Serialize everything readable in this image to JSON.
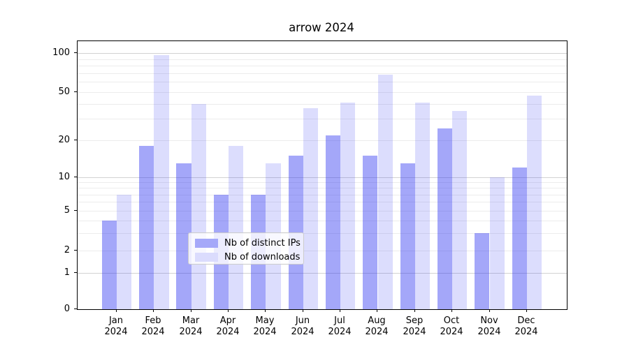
{
  "chart_data": {
    "type": "bar",
    "title": "arrow 2024",
    "xlabel": "",
    "ylabel": "",
    "categories": [
      "Jan",
      "Feb",
      "Mar",
      "Apr",
      "May",
      "Jun",
      "Jul",
      "Aug",
      "Sep",
      "Oct",
      "Nov",
      "Dec"
    ],
    "category_year_suffix": "2024",
    "series": [
      {
        "name": "Nb of distinct IPs",
        "values": [
          4,
          18,
          13,
          7,
          7,
          15,
          22,
          15,
          13,
          25,
          3,
          12
        ],
        "color": "rgba(45,52,242,0.43)",
        "color_on_white": "#a5a8f9"
      },
      {
        "name": "Nb of downloads",
        "values": [
          7,
          97,
          40,
          18,
          13,
          37,
          41,
          68,
          41,
          35,
          10,
          47
        ],
        "color": "rgba(45,52,242,0.17)",
        "color_on_white": "#dbdcfd"
      }
    ],
    "yscale": "symlog",
    "ylim": [
      0,
      120
    ],
    "yticks": [
      0,
      1,
      2,
      5,
      10,
      20,
      50,
      100
    ],
    "grid": true,
    "grid_major_values": [
      1,
      10,
      100
    ],
    "grid_minor_values": [
      2,
      3,
      4,
      5,
      6,
      7,
      8,
      9,
      20,
      30,
      40,
      50,
      60,
      70,
      80,
      90
    ],
    "legend_position": "lower center inside"
  },
  "colors": {
    "background": "#ffffff",
    "axis": "#000000",
    "grid_major": "#d2d2d2",
    "grid_minor": "#ececec",
    "legend_border": "#cccccc",
    "text": "#000000"
  }
}
